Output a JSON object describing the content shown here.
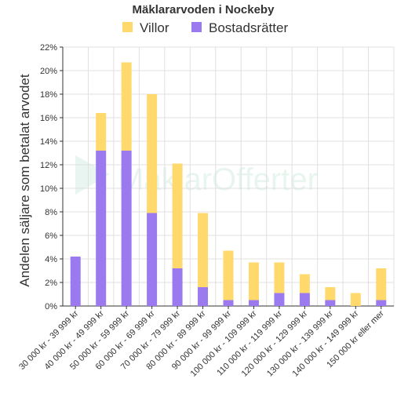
{
  "chart_data": {
    "type": "bar",
    "stacked": true,
    "title": "Mäklararvoden i Nockeby",
    "ylabel": "Andelen säljare som betalat arvodet",
    "xlabel": "",
    "ylim": [
      0,
      22
    ],
    "yticks": [
      0,
      2,
      4,
      6,
      8,
      10,
      12,
      14,
      16,
      18,
      20,
      22
    ],
    "ytick_suffix": "%",
    "grid": true,
    "legend_position": "top",
    "categories": [
      "30 000 kr - 39 999 kr",
      "40 000 kr - 49 999 kr",
      "50 000 kr - 59 999 kr",
      "60 000 kr - 69 999 kr",
      "70 000 kr - 79 999 kr",
      "80 000 kr - 89 999 kr",
      "90 000 kr - 99 999 kr",
      "100 000 kr - 109 999 kr",
      "110 000 kr - 119 999 kr",
      "120 000 kr - 129 999 kr",
      "130 000 kr - 139 999 kr",
      "140 000 kr - 149 999 kr",
      "150 000 kr eller mer"
    ],
    "series": [
      {
        "name": "Bostadsrätter",
        "color": "#9b7af0",
        "values": [
          4.2,
          13.2,
          13.2,
          7.9,
          3.2,
          1.6,
          0.5,
          0.5,
          1.1,
          1.1,
          0.5,
          0,
          0.5
        ]
      },
      {
        "name": "Villor",
        "color": "#ffd96b",
        "values": [
          0,
          3.2,
          7.5,
          10.1,
          8.9,
          6.3,
          4.2,
          3.2,
          2.6,
          1.6,
          1.1,
          1.1,
          2.7
        ]
      }
    ],
    "legend_order": [
      "Villor",
      "Bostadsrätter"
    ]
  },
  "watermark": {
    "text_prefix": "Mäklar",
    "text_suffix": "Offerter"
  }
}
